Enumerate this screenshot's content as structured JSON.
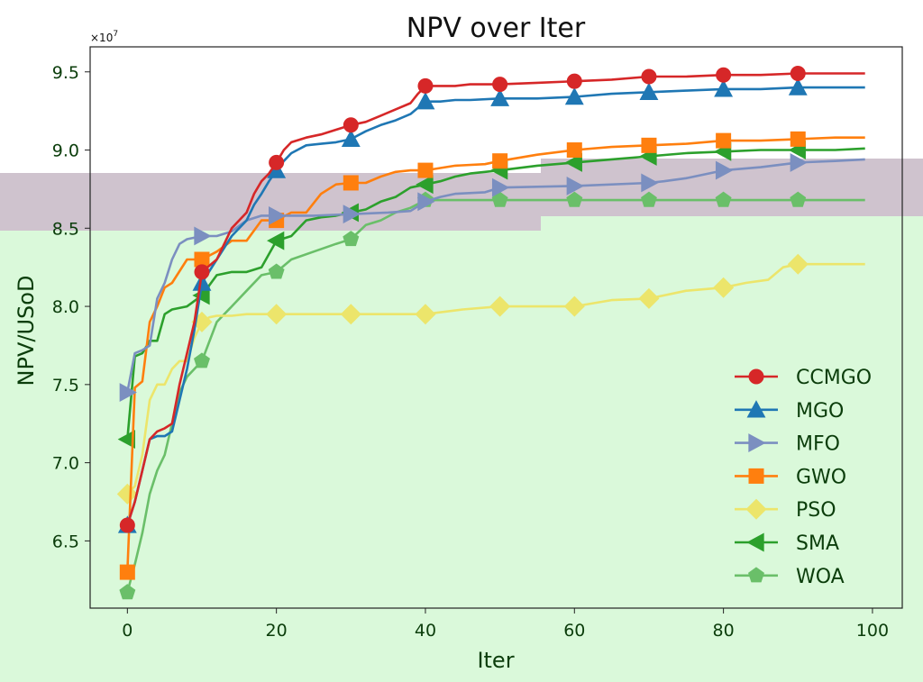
{
  "chart_data": {
    "type": "line",
    "title": "NPV over Iter",
    "xlabel": "Iter",
    "ylabel": "NPV/USoD",
    "y_multiplier_label": "×10",
    "y_multiplier_exp": "7",
    "xlim": [
      -5,
      104
    ],
    "ylim": [
      6.07,
      9.66
    ],
    "x_ticks": [
      0,
      20,
      40,
      60,
      80,
      100
    ],
    "x_tick_labels": [
      "0",
      "20",
      "40",
      "60",
      "80",
      "100"
    ],
    "y_ticks": [
      6.5,
      7.0,
      7.5,
      8.0,
      8.5,
      9.0,
      9.5
    ],
    "y_tick_labels": [
      "6.5",
      "7.0",
      "7.5",
      "8.0",
      "8.5",
      "9.0",
      "9.5"
    ],
    "legend_position": "lower-right",
    "marker_every": 10,
    "series": [
      {
        "name": "CCMGO",
        "color": "#d62728",
        "marker": "circle",
        "x": [
          0,
          1,
          2,
          3,
          4,
          5,
          6,
          7,
          8,
          9,
          10,
          12,
          14,
          16,
          17,
          18,
          19,
          20,
          21,
          22,
          24,
          26,
          28,
          30,
          32,
          34,
          36,
          38,
          39,
          40,
          42,
          44,
          46,
          48,
          50,
          55,
          60,
          65,
          70,
          75,
          80,
          85,
          90,
          95,
          99
        ],
        "y": [
          6.6,
          6.75,
          6.95,
          7.15,
          7.2,
          7.22,
          7.25,
          7.5,
          7.7,
          7.9,
          8.22,
          8.3,
          8.5,
          8.6,
          8.72,
          8.8,
          8.85,
          8.92,
          9.0,
          9.05,
          9.08,
          9.1,
          9.13,
          9.16,
          9.18,
          9.22,
          9.26,
          9.3,
          9.36,
          9.41,
          9.41,
          9.41,
          9.42,
          9.42,
          9.42,
          9.43,
          9.44,
          9.45,
          9.47,
          9.47,
          9.48,
          9.48,
          9.49,
          9.49,
          9.49
        ]
      },
      {
        "name": "MGO",
        "color": "#1f77b4",
        "marker": "triangle-up",
        "x": [
          0,
          1,
          2,
          3,
          4,
          5,
          6,
          7,
          8,
          9,
          10,
          12,
          14,
          16,
          17,
          18,
          19,
          20,
          21,
          22,
          24,
          26,
          28,
          30,
          32,
          34,
          36,
          38,
          40,
          42,
          44,
          46,
          50,
          55,
          60,
          65,
          70,
          75,
          80,
          85,
          90,
          95,
          99
        ],
        "y": [
          6.6,
          6.75,
          6.95,
          7.15,
          7.17,
          7.17,
          7.2,
          7.4,
          7.6,
          7.85,
          8.15,
          8.3,
          8.45,
          8.55,
          8.65,
          8.72,
          8.8,
          8.87,
          8.93,
          8.98,
          9.03,
          9.04,
          9.05,
          9.07,
          9.12,
          9.16,
          9.19,
          9.23,
          9.31,
          9.31,
          9.32,
          9.32,
          9.33,
          9.33,
          9.34,
          9.36,
          9.37,
          9.38,
          9.39,
          9.39,
          9.4,
          9.4,
          9.4
        ]
      },
      {
        "name": "MFO",
        "color": "#7b8fc0",
        "marker": "triangle-right",
        "x": [
          0,
          1,
          2,
          3,
          4,
          5,
          6,
          7,
          8,
          10,
          12,
          14,
          16,
          18,
          20,
          22,
          25,
          30,
          35,
          38,
          40,
          42,
          44,
          48,
          50,
          60,
          70,
          72,
          75,
          78,
          80,
          85,
          90,
          95,
          99
        ],
        "y": [
          7.45,
          7.7,
          7.72,
          7.75,
          8.05,
          8.15,
          8.3,
          8.4,
          8.43,
          8.45,
          8.45,
          8.48,
          8.55,
          8.58,
          8.58,
          8.58,
          8.58,
          8.59,
          8.6,
          8.61,
          8.67,
          8.7,
          8.72,
          8.73,
          8.76,
          8.77,
          8.79,
          8.8,
          8.82,
          8.85,
          8.87,
          8.89,
          8.92,
          8.93,
          8.94
        ]
      },
      {
        "name": "GWO",
        "color": "#ff7f0e",
        "marker": "square",
        "x": [
          0,
          1,
          2,
          3,
          4,
          5,
          6,
          8,
          10,
          12,
          14,
          16,
          18,
          20,
          22,
          24,
          26,
          28,
          30,
          32,
          34,
          36,
          38,
          40,
          44,
          48,
          50,
          55,
          60,
          65,
          70,
          75,
          80,
          85,
          90,
          95,
          99
        ],
        "y": [
          6.3,
          7.48,
          7.52,
          7.9,
          8.0,
          8.12,
          8.15,
          8.3,
          8.3,
          8.35,
          8.42,
          8.42,
          8.55,
          8.55,
          8.6,
          8.6,
          8.72,
          8.78,
          8.79,
          8.79,
          8.83,
          8.86,
          8.87,
          8.87,
          8.9,
          8.91,
          8.93,
          8.97,
          9.0,
          9.02,
          9.03,
          9.04,
          9.06,
          9.06,
          9.07,
          9.08,
          9.08
        ]
      },
      {
        "name": "PSO",
        "color": "#ece56b",
        "marker": "diamond",
        "x": [
          0,
          1,
          2,
          3,
          4,
          5,
          6,
          7,
          8,
          9,
          10,
          11,
          12,
          14,
          16,
          20,
          25,
          30,
          35,
          40,
          45,
          50,
          55,
          60,
          65,
          70,
          75,
          80,
          83,
          86,
          88,
          90,
          95,
          99
        ],
        "y": [
          6.8,
          6.85,
          7.05,
          7.4,
          7.5,
          7.5,
          7.6,
          7.65,
          7.65,
          7.8,
          7.9,
          7.93,
          7.94,
          7.94,
          7.95,
          7.95,
          7.95,
          7.95,
          7.95,
          7.95,
          7.98,
          8.0,
          8.0,
          8.0,
          8.04,
          8.05,
          8.1,
          8.12,
          8.15,
          8.17,
          8.25,
          8.27,
          8.27,
          8.27
        ]
      },
      {
        "name": "SMA",
        "color": "#2ca02c",
        "marker": "triangle-left",
        "x": [
          0,
          1,
          2,
          3,
          4,
          5,
          6,
          8,
          10,
          12,
          14,
          16,
          18,
          20,
          22,
          24,
          26,
          28,
          30,
          32,
          34,
          36,
          38,
          40,
          42,
          44,
          46,
          50,
          55,
          60,
          65,
          70,
          75,
          80,
          85,
          90,
          95,
          99
        ],
        "y": [
          7.15,
          7.68,
          7.7,
          7.78,
          7.78,
          7.95,
          7.98,
          8.0,
          8.07,
          8.2,
          8.22,
          8.22,
          8.25,
          8.42,
          8.45,
          8.55,
          8.57,
          8.58,
          8.6,
          8.62,
          8.67,
          8.7,
          8.76,
          8.78,
          8.8,
          8.83,
          8.85,
          8.87,
          8.9,
          8.92,
          8.94,
          8.96,
          8.98,
          8.99,
          9.0,
          9.0,
          9.0,
          9.01
        ]
      },
      {
        "name": "WOA",
        "color": "#6abf69",
        "marker": "pentagon",
        "x": [
          0,
          1,
          2,
          3,
          4,
          5,
          6,
          7,
          8,
          9,
          10,
          12,
          14,
          16,
          18,
          20,
          22,
          25,
          28,
          30,
          32,
          34,
          36,
          38,
          40,
          45,
          50,
          60,
          70,
          80,
          90,
          95,
          99
        ],
        "y": [
          6.17,
          6.35,
          6.55,
          6.8,
          6.95,
          7.05,
          7.25,
          7.45,
          7.55,
          7.6,
          7.65,
          7.9,
          8.0,
          8.1,
          8.2,
          8.22,
          8.3,
          8.35,
          8.4,
          8.43,
          8.52,
          8.55,
          8.6,
          8.63,
          8.68,
          8.68,
          8.68,
          8.68,
          8.68,
          8.68,
          8.68,
          8.68,
          8.68
        ]
      }
    ]
  },
  "colors": {
    "page_background": "#ffffff",
    "lower_band": "#daf9da",
    "upper_band": "#cfc3ce",
    "axes_frame": "#222222"
  }
}
